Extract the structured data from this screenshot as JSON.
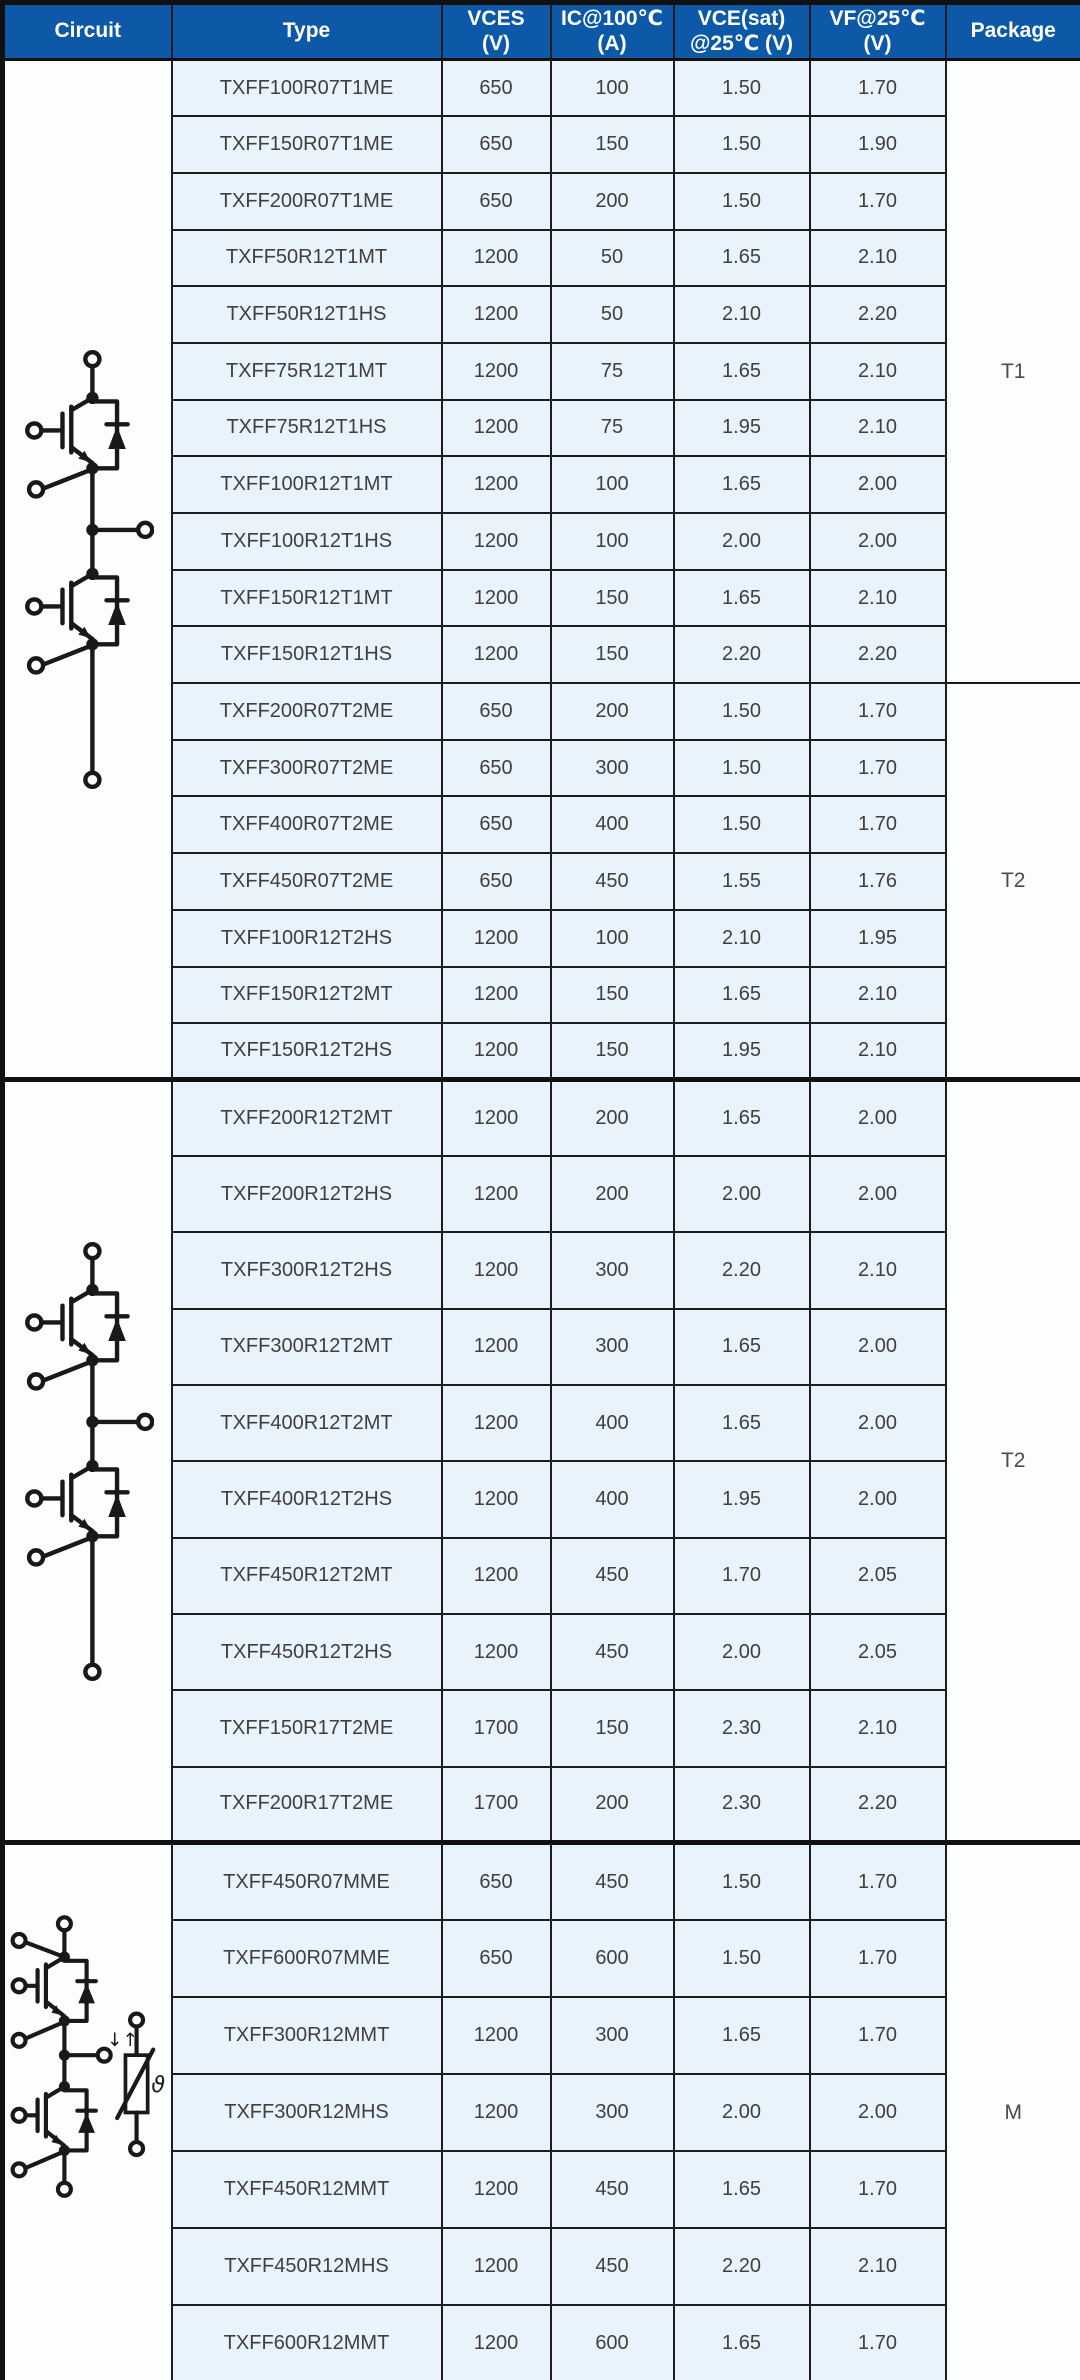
{
  "colors": {
    "header_bg": "#0d59a8",
    "header_text": "#ffffff",
    "row_bg": "#e8f3fb",
    "cell_text": "#3f3f3f",
    "panel_bg": "#fcfdfe",
    "border": "#1c1c1c",
    "frame": "#111111"
  },
  "table": {
    "columns": [
      {
        "key": "circuit",
        "label": "Circuit"
      },
      {
        "key": "type",
        "label": "Type"
      },
      {
        "key": "vces",
        "label": "VCES\n(V)"
      },
      {
        "key": "ic",
        "label": "IC@100℃\n(A)"
      },
      {
        "key": "vce_sat",
        "label": "VCE(sat)\n@25℃ (V)"
      },
      {
        "key": "vf",
        "label": "VF@25℃\n(V)"
      },
      {
        "key": "package",
        "label": "Package"
      }
    ],
    "blocks": [
      {
        "circuit_icon": "half-bridge-igbt-circuit-icon",
        "package_groups": [
          {
            "label": "T1",
            "rows": 11
          },
          {
            "label": "T2",
            "rows": 7
          }
        ],
        "rows": [
          {
            "type": "TXFF100R07T1ME",
            "vces": "650",
            "ic": "100",
            "vce_sat": "1.50",
            "vf": "1.70"
          },
          {
            "type": "TXFF150R07T1ME",
            "vces": "650",
            "ic": "150",
            "vce_sat": "1.50",
            "vf": "1.90"
          },
          {
            "type": "TXFF200R07T1ME",
            "vces": "650",
            "ic": "200",
            "vce_sat": "1.50",
            "vf": "1.70"
          },
          {
            "type": "TXFF50R12T1MT",
            "vces": "1200",
            "ic": "50",
            "vce_sat": "1.65",
            "vf": "2.10"
          },
          {
            "type": "TXFF50R12T1HS",
            "vces": "1200",
            "ic": "50",
            "vce_sat": "2.10",
            "vf": "2.20"
          },
          {
            "type": "TXFF75R12T1MT",
            "vces": "1200",
            "ic": "75",
            "vce_sat": "1.65",
            "vf": "2.10"
          },
          {
            "type": "TXFF75R12T1HS",
            "vces": "1200",
            "ic": "75",
            "vce_sat": "1.95",
            "vf": "2.10"
          },
          {
            "type": "TXFF100R12T1MT",
            "vces": "1200",
            "ic": "100",
            "vce_sat": "1.65",
            "vf": "2.00"
          },
          {
            "type": "TXFF100R12T1HS",
            "vces": "1200",
            "ic": "100",
            "vce_sat": "2.00",
            "vf": "2.00"
          },
          {
            "type": "TXFF150R12T1MT",
            "vces": "1200",
            "ic": "150",
            "vce_sat": "1.65",
            "vf": "2.10"
          },
          {
            "type": "TXFF150R12T1HS",
            "vces": "1200",
            "ic": "150",
            "vce_sat": "2.20",
            "vf": "2.20"
          },
          {
            "type": "TXFF200R07T2ME",
            "vces": "650",
            "ic": "200",
            "vce_sat": "1.50",
            "vf": "1.70"
          },
          {
            "type": "TXFF300R07T2ME",
            "vces": "650",
            "ic": "300",
            "vce_sat": "1.50",
            "vf": "1.70"
          },
          {
            "type": "TXFF400R07T2ME",
            "vces": "650",
            "ic": "400",
            "vce_sat": "1.50",
            "vf": "1.70"
          },
          {
            "type": "TXFF450R07T2ME",
            "vces": "650",
            "ic": "450",
            "vce_sat": "1.55",
            "vf": "1.76"
          },
          {
            "type": "TXFF100R12T2HS",
            "vces": "1200",
            "ic": "100",
            "vce_sat": "2.10",
            "vf": "1.95"
          },
          {
            "type": "TXFF150R12T2MT",
            "vces": "1200",
            "ic": "150",
            "vce_sat": "1.65",
            "vf": "2.10"
          },
          {
            "type": "TXFF150R12T2HS",
            "vces": "1200",
            "ic": "150",
            "vce_sat": "1.95",
            "vf": "2.10"
          }
        ]
      },
      {
        "circuit_icon": "half-bridge-igbt-circuit-icon",
        "package_groups": [
          {
            "label": "T2",
            "rows": 10
          }
        ],
        "rows": [
          {
            "type": "TXFF200R12T2MT",
            "vces": "1200",
            "ic": "200",
            "vce_sat": "1.65",
            "vf": "2.00"
          },
          {
            "type": "TXFF200R12T2HS",
            "vces": "1200",
            "ic": "200",
            "vce_sat": "2.00",
            "vf": "2.00"
          },
          {
            "type": "TXFF300R12T2HS",
            "vces": "1200",
            "ic": "300",
            "vce_sat": "2.20",
            "vf": "2.10"
          },
          {
            "type": "TXFF300R12T2MT",
            "vces": "1200",
            "ic": "300",
            "vce_sat": "1.65",
            "vf": "2.00"
          },
          {
            "type": "TXFF400R12T2MT",
            "vces": "1200",
            "ic": "400",
            "vce_sat": "1.65",
            "vf": "2.00"
          },
          {
            "type": "TXFF400R12T2HS",
            "vces": "1200",
            "ic": "400",
            "vce_sat": "1.95",
            "vf": "2.00"
          },
          {
            "type": "TXFF450R12T2MT",
            "vces": "1200",
            "ic": "450",
            "vce_sat": "1.70",
            "vf": "2.05"
          },
          {
            "type": "TXFF450R12T2HS",
            "vces": "1200",
            "ic": "450",
            "vce_sat": "2.00",
            "vf": "2.05"
          },
          {
            "type": "TXFF150R17T2ME",
            "vces": "1700",
            "ic": "150",
            "vce_sat": "2.30",
            "vf": "2.10"
          },
          {
            "type": "TXFF200R17T2ME",
            "vces": "1700",
            "ic": "200",
            "vce_sat": "2.30",
            "vf": "2.20"
          }
        ]
      },
      {
        "circuit_icon": "half-bridge-igbt-ntc-circuit-icon",
        "package_groups": [
          {
            "label": "M",
            "rows": 7
          }
        ],
        "rows": [
          {
            "type": "TXFF450R07MME",
            "vces": "650",
            "ic": "450",
            "vce_sat": "1.50",
            "vf": "1.70"
          },
          {
            "type": "TXFF600R07MME",
            "vces": "650",
            "ic": "600",
            "vce_sat": "1.50",
            "vf": "1.70"
          },
          {
            "type": "TXFF300R12MMT",
            "vces": "1200",
            "ic": "300",
            "vce_sat": "1.65",
            "vf": "1.70"
          },
          {
            "type": "TXFF300R12MHS",
            "vces": "1200",
            "ic": "300",
            "vce_sat": "2.00",
            "vf": "2.00"
          },
          {
            "type": "TXFF450R12MMT",
            "vces": "1200",
            "ic": "450",
            "vce_sat": "1.65",
            "vf": "1.70"
          },
          {
            "type": "TXFF450R12MHS",
            "vces": "1200",
            "ic": "450",
            "vce_sat": "2.20",
            "vf": "2.10"
          },
          {
            "type": "TXFF600R12MMT",
            "vces": "1200",
            "ic": "600",
            "vce_sat": "1.65",
            "vf": "1.70"
          }
        ]
      }
    ]
  }
}
